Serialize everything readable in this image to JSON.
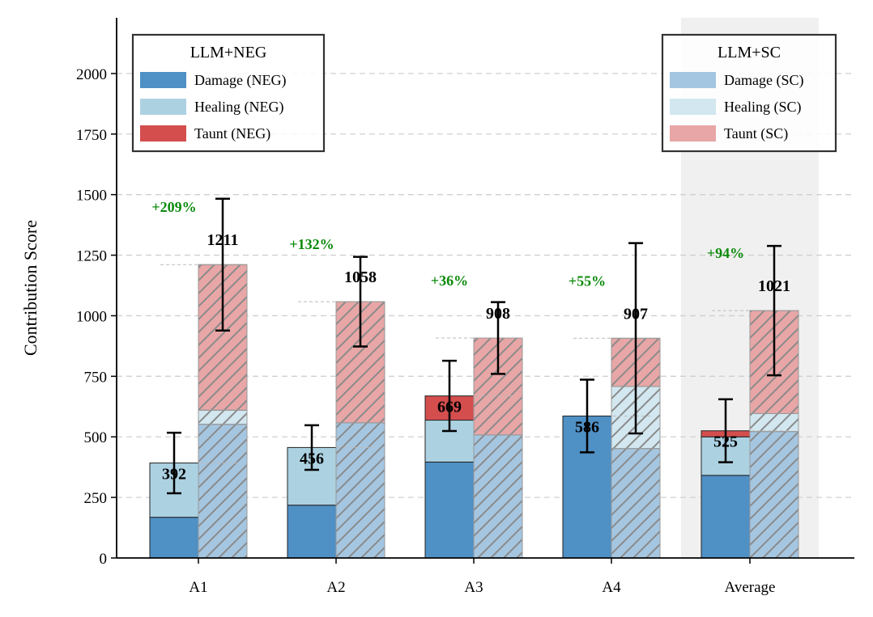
{
  "chart_data": {
    "type": "bar",
    "subtype": "stacked-grouped",
    "ylabel": "Contribution Score",
    "xlabel": "",
    "ylim": [
      0,
      2230
    ],
    "yticks": [
      0,
      250,
      500,
      750,
      1000,
      1250,
      1500,
      1750,
      2000
    ],
    "grid": "horizontal-dashed",
    "categories": [
      "A1",
      "A2",
      "A3",
      "A4",
      "Average"
    ],
    "highlighted_category": "Average",
    "groups": [
      {
        "name": "LLM+NEG",
        "segments": [
          {
            "name": "Damage (NEG)",
            "color": "#4f90c5",
            "values": [
              168,
              218,
              396,
              586,
              341
            ]
          },
          {
            "name": "Healing (NEG)",
            "color": "#acd2e2",
            "values": [
              224,
              238,
              173,
              0,
              159
            ]
          },
          {
            "name": "Taunt (NEG)",
            "color": "#d44e4e",
            "values": [
              0,
              0,
              100,
              0,
              25
            ]
          }
        ],
        "totals": [
          392,
          456,
          669,
          586,
          525
        ],
        "error": [
          125,
          92,
          145,
          150,
          130
        ]
      },
      {
        "name": "LLM+SC",
        "segments": [
          {
            "name": "Damage (SC)",
            "color": "#a5c6e1",
            "values": [
              552,
              558,
              508,
              452,
              522
            ]
          },
          {
            "name": "Healing (SC)",
            "color": "#d2e7f0",
            "values": [
              58,
              0,
              0,
              256,
              74
            ]
          },
          {
            "name": "Taunt (SC)",
            "color": "#e8a6a6",
            "values": [
              601,
              500,
              400,
              199,
              425
            ]
          }
        ],
        "totals": [
          1211,
          1058,
          908,
          907,
          1021
        ],
        "error": [
          272,
          185,
          148,
          393,
          267
        ]
      }
    ],
    "improvements": [
      "+209%",
      "+132%",
      "+36%",
      "+55%",
      "+94%"
    ],
    "legends": [
      {
        "title": "LLM+NEG",
        "position": "upper-left",
        "entries": [
          "Damage (NEG)",
          "Healing (NEG)",
          "Taunt (NEG)"
        ]
      },
      {
        "title": "LLM+SC",
        "position": "upper-right",
        "entries": [
          "Damage (SC)",
          "Healing (SC)",
          "Taunt (SC)"
        ]
      }
    ]
  }
}
